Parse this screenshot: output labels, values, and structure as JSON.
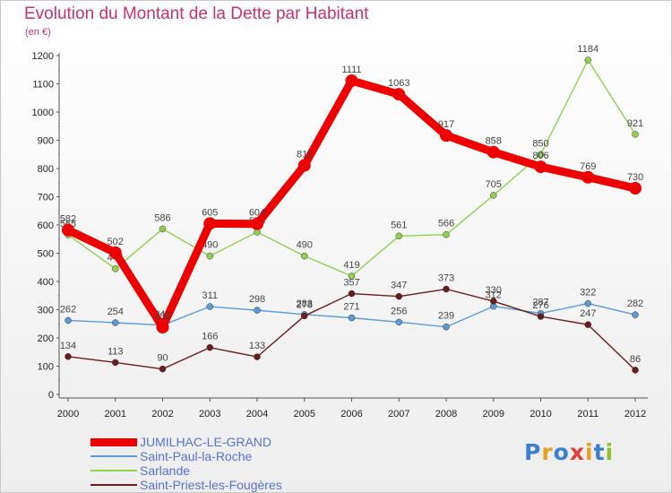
{
  "chart_data": {
    "type": "line",
    "title": "Evolution du Montant de la Dette par Habitant",
    "subtitle": "(en €)",
    "categories": [
      "2000",
      "2001",
      "2002",
      "2003",
      "2004",
      "2005",
      "2006",
      "2007",
      "2008",
      "2009",
      "2010",
      "2011",
      "2012"
    ],
    "ylim": [
      0,
      1200
    ],
    "yticks": [
      0,
      100,
      200,
      300,
      400,
      500,
      600,
      700,
      800,
      900,
      1000,
      1100,
      1200
    ],
    "grid": false,
    "legend_position": "bottom-left",
    "series": [
      {
        "name": "Saint-Paul-la-Roche",
        "color": "#5b9bd5",
        "values": [
          262,
          254,
          245,
          311,
          298,
          283,
          271,
          256,
          239,
          312,
          287,
          322,
          282
        ],
        "labels": [
          "262",
          "254",
          "245",
          "311",
          "298",
          "283",
          "271",
          "256",
          "239",
          "312",
          "287",
          "322",
          "282"
        ]
      },
      {
        "name": "Sarlande",
        "color": "#92d050",
        "values": [
          565,
          445,
          586,
          490,
          575,
          490,
          419,
          561,
          566,
          705,
          850,
          1184,
          921
        ],
        "labels": [
          "565",
          "445",
          "586",
          "490",
          "575",
          "490",
          "419",
          "561",
          "566",
          "705",
          "850",
          "1184",
          "921"
        ]
      },
      {
        "name": "Saint-Priest-les-Fougères",
        "color": "#6b1c1c",
        "values": [
          134,
          113,
          90,
          166,
          133,
          278,
          357,
          347,
          373,
          330,
          276,
          247,
          86
        ],
        "labels": [
          "134",
          "113",
          "90",
          "166",
          "133",
          "278",
          "357",
          "347",
          "373",
          "330",
          "276",
          "247",
          "86"
        ]
      },
      {
        "name": "JUMILHAC-LE-GRAND",
        "color": "#ee0000",
        "values": [
          582,
          502,
          238,
          605,
          604,
          811,
          1111,
          1063,
          917,
          858,
          806,
          769,
          730
        ],
        "labels": [
          "582",
          "502",
          "238",
          "605",
          "604",
          "811",
          "1111",
          "1063",
          "917",
          "858",
          "806",
          "769",
          "730"
        ]
      }
    ],
    "legend": [
      {
        "name": "JUMILHAC-LE-GRAND",
        "color": "#ee0000"
      },
      {
        "name": "Saint-Paul-la-Roche",
        "color": "#5b9bd5"
      },
      {
        "name": "Sarlande",
        "color": "#92d050"
      },
      {
        "name": "Saint-Priest-les-Fougères",
        "color": "#6b1c1c"
      }
    ]
  },
  "logo": {
    "letters": [
      "P",
      "r",
      "o",
      "x",
      "i",
      "t",
      "i"
    ],
    "colors": [
      "#3a7fd0",
      "#e8a020",
      "#3a7fd0",
      "#e04040",
      "#e8a020",
      "#3a7fd0",
      "#90c030"
    ]
  }
}
